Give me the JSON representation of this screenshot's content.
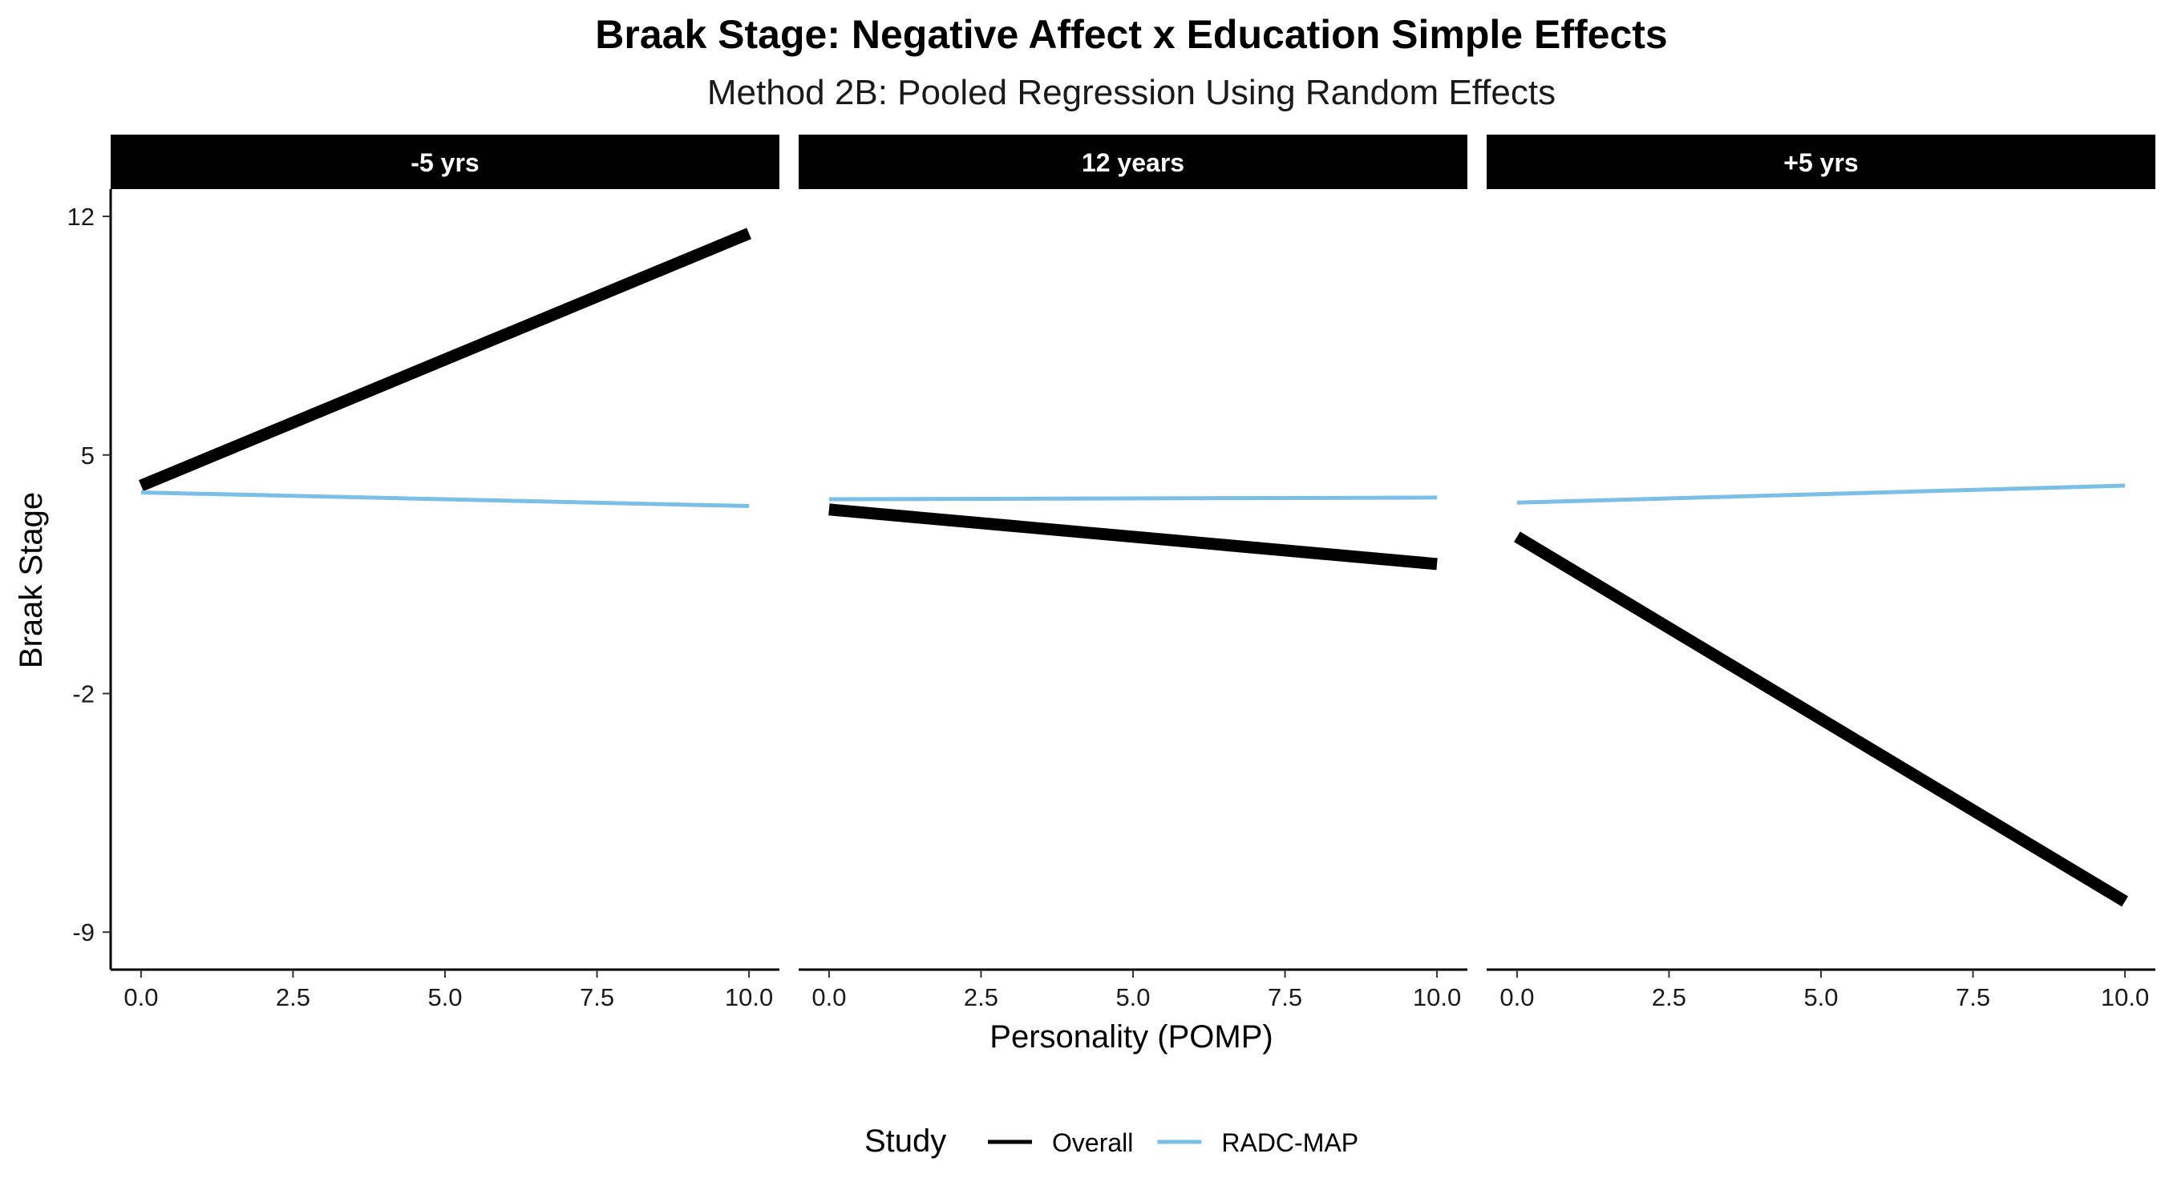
{
  "chart_data": {
    "type": "line",
    "title": "Braak Stage: Negative Affect x Education Simple Effects",
    "subtitle": "Method 2B: Pooled Regression Using Random Effects",
    "xlabel": "Personality (POMP)",
    "ylabel": "Braak Stage",
    "x_ticks": [
      "0.0",
      "2.5",
      "5.0",
      "7.5",
      "10.0"
    ],
    "x_tick_values": [
      0,
      2.5,
      5,
      7.5,
      10
    ],
    "y_ticks": [
      "-9",
      "-2",
      "5",
      "12"
    ],
    "y_tick_values": [
      -9,
      -2,
      5,
      12
    ],
    "xlim": [
      -0.5,
      10.5
    ],
    "ylim": [
      -10.1,
      12.8
    ],
    "grid": false,
    "legend": {
      "title": "Study",
      "position": "bottom",
      "entries": [
        {
          "name": "Overall",
          "color": "#000000"
        },
        {
          "name": "RADC-MAP",
          "color": "#7bbfe6"
        }
      ]
    },
    "facets": [
      {
        "label": "-5 yrs",
        "series": [
          {
            "name": "Overall",
            "x": [
              0,
              10
            ],
            "y": [
              4.1,
              11.5
            ]
          },
          {
            "name": "RADC-MAP",
            "x": [
              0,
              10
            ],
            "y": [
              3.9,
              3.5
            ]
          }
        ]
      },
      {
        "label": "12 years",
        "series": [
          {
            "name": "Overall",
            "x": [
              0,
              10
            ],
            "y": [
              3.4,
              1.8
            ]
          },
          {
            "name": "RADC-MAP",
            "x": [
              0,
              10
            ],
            "y": [
              3.7,
              3.75
            ]
          }
        ]
      },
      {
        "label": "+5 yrs",
        "series": [
          {
            "name": "Overall",
            "x": [
              0,
              10
            ],
            "y": [
              2.6,
              -8.1
            ]
          },
          {
            "name": "RADC-MAP",
            "x": [
              0,
              10
            ],
            "y": [
              3.6,
              4.1
            ]
          }
        ]
      }
    ]
  }
}
